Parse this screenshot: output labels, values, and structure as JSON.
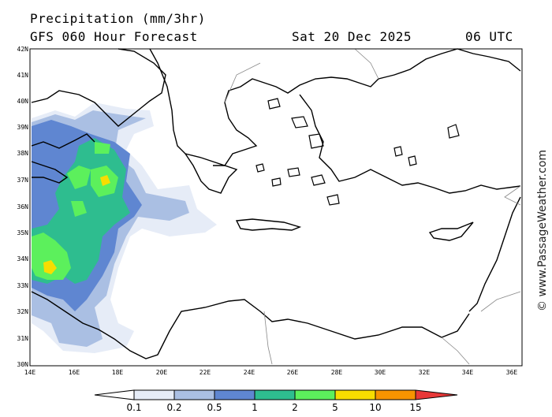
{
  "header": {
    "title": "Precipitation (mm/3hr)",
    "subtitle": "GFS 060 Hour Forecast",
    "date": "Sat 20 Dec 2025",
    "time": "06 UTC"
  },
  "map": {
    "lat_labels": [
      "42N",
      "41N",
      "40N",
      "39N",
      "38N",
      "37N",
      "36N",
      "35N",
      "34N",
      "33N",
      "32N",
      "31N",
      "30N"
    ],
    "lon_labels": [
      "14E",
      "16E",
      "18E",
      "20E",
      "22E",
      "24E",
      "26E",
      "28E",
      "30E",
      "32E",
      "34E",
      "36E"
    ],
    "colors": {
      "land_line": "#000000",
      "border": "#888888",
      "frame": "#000000"
    }
  },
  "watermark": "© www.PassageWeather.com",
  "colorbar": {
    "labels": [
      "0.1",
      "0.2",
      "0.5",
      "1",
      "2",
      "5",
      "10",
      "15"
    ],
    "colors": [
      "#e6ecf7",
      "#aabfe3",
      "#5f86d1",
      "#2ebd8f",
      "#5cf05c",
      "#f7dd00",
      "#f79400",
      "#e83838"
    ]
  }
}
